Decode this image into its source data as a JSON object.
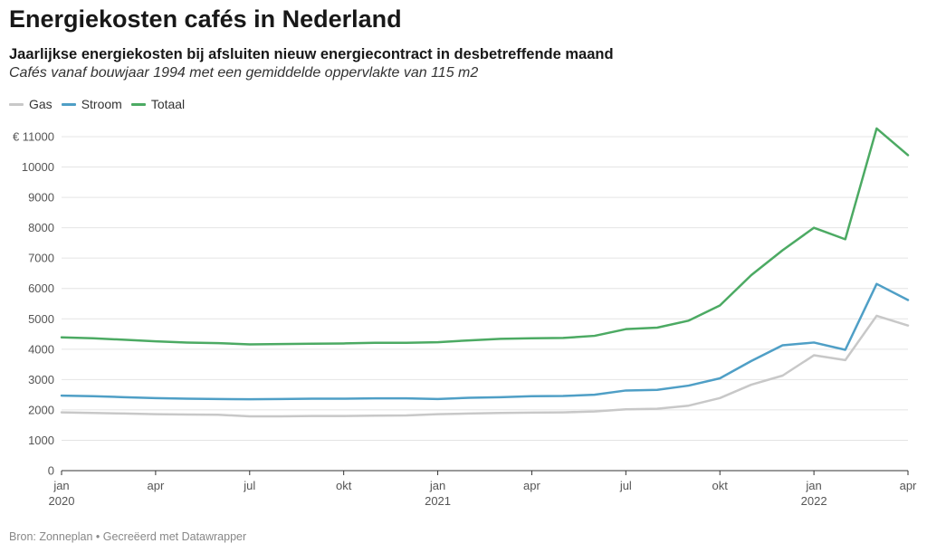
{
  "title": "Energiekosten cafés in Nederland",
  "subtitle": "Jaarlijkse energiekosten bij afsluiten nieuw energiecontract in desbetreffende maand",
  "description": "Cafés vanaf bouwjaar 1994 met een gemiddelde oppervlakte van 115 m2",
  "footer": "Bron: Zonneplan • Gecreëerd met Datawrapper",
  "chart_data": {
    "type": "line",
    "x": [
      "2020-01",
      "2020-02",
      "2020-03",
      "2020-04",
      "2020-05",
      "2020-06",
      "2020-07",
      "2020-08",
      "2020-09",
      "2020-10",
      "2020-11",
      "2020-12",
      "2021-01",
      "2021-02",
      "2021-03",
      "2021-04",
      "2021-05",
      "2021-06",
      "2021-07",
      "2021-08",
      "2021-09",
      "2021-10",
      "2021-11",
      "2021-12",
      "2022-01",
      "2022-02",
      "2022-03",
      "2022-04"
    ],
    "x_ticks": [
      {
        "x": "2020-01",
        "label": "jan",
        "year": "2020"
      },
      {
        "x": "2020-04",
        "label": "apr",
        "year": ""
      },
      {
        "x": "2020-07",
        "label": "jul",
        "year": ""
      },
      {
        "x": "2020-10",
        "label": "okt",
        "year": ""
      },
      {
        "x": "2021-01",
        "label": "jan",
        "year": "2021"
      },
      {
        "x": "2021-04",
        "label": "apr",
        "year": ""
      },
      {
        "x": "2021-07",
        "label": "jul",
        "year": ""
      },
      {
        "x": "2021-10",
        "label": "okt",
        "year": ""
      },
      {
        "x": "2022-01",
        "label": "jan",
        "year": "2022"
      },
      {
        "x": "2022-04",
        "label": "apr",
        "year": ""
      }
    ],
    "y_ticks": [
      {
        "value": 0,
        "label": "0"
      },
      {
        "value": 1000,
        "label": "1000"
      },
      {
        "value": 2000,
        "label": "2000"
      },
      {
        "value": 3000,
        "label": "3000"
      },
      {
        "value": 4000,
        "label": "4000"
      },
      {
        "value": 5000,
        "label": "5000"
      },
      {
        "value": 6000,
        "label": "6000"
      },
      {
        "value": 7000,
        "label": "7000"
      },
      {
        "value": 8000,
        "label": "8000"
      },
      {
        "value": 9000,
        "label": "9000"
      },
      {
        "value": 10000,
        "label": "10000"
      },
      {
        "value": 11000,
        "label": "€ 11000"
      }
    ],
    "ylim": [
      0,
      11000
    ],
    "grid": true,
    "legend_position": "top-left",
    "series": [
      {
        "name": "Gas",
        "color": "#c8c8c8",
        "values": [
          1920,
          1900,
          1880,
          1860,
          1850,
          1840,
          1790,
          1790,
          1800,
          1800,
          1810,
          1820,
          1860,
          1880,
          1900,
          1910,
          1920,
          1950,
          2020,
          2040,
          2140,
          2390,
          2830,
          3130,
          3800,
          3640,
          5100,
          4780
        ]
      },
      {
        "name": "Stroom",
        "color": "#4f9fc6",
        "values": [
          2470,
          2450,
          2420,
          2390,
          2370,
          2360,
          2350,
          2360,
          2370,
          2370,
          2380,
          2380,
          2360,
          2400,
          2420,
          2450,
          2460,
          2500,
          2640,
          2660,
          2800,
          3040,
          3610,
          4130,
          4220,
          3980,
          6150,
          5620
        ]
      },
      {
        "name": "Totaal",
        "color": "#4caa63",
        "values": [
          4390,
          4360,
          4310,
          4260,
          4220,
          4200,
          4160,
          4170,
          4180,
          4190,
          4210,
          4210,
          4230,
          4290,
          4340,
          4360,
          4370,
          4440,
          4660,
          4710,
          4940,
          5440,
          6440,
          7260,
          8000,
          7620,
          11270,
          10390
        ]
      }
    ]
  }
}
